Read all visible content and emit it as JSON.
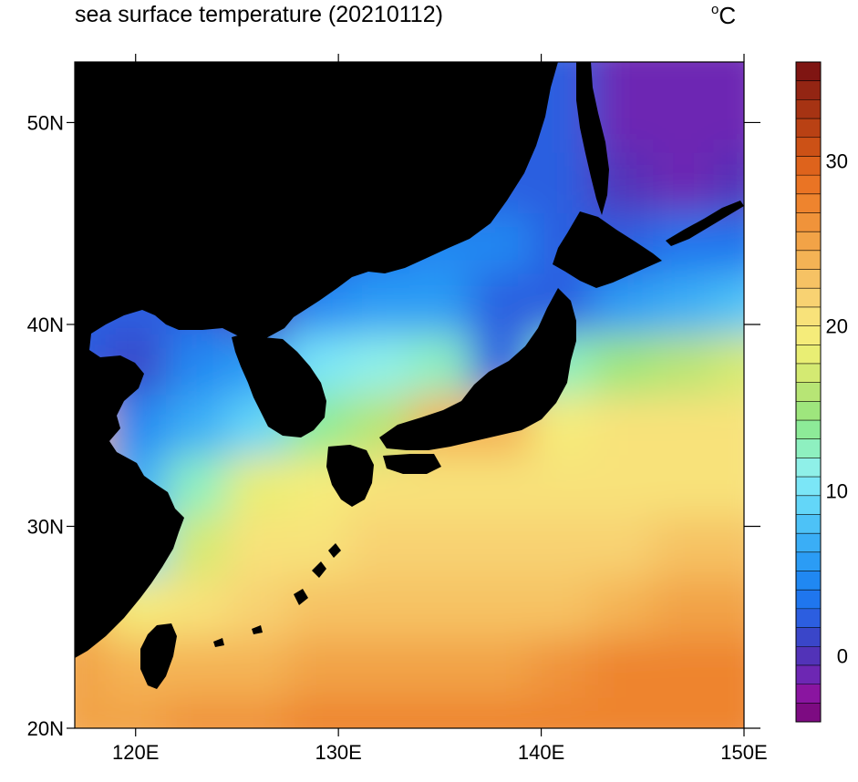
{
  "title": "sea surface temperature (20210112)",
  "units": {
    "degree": "o",
    "unit": "C"
  },
  "map": {
    "lon_range": [
      117,
      150
    ],
    "lat_range": [
      20,
      53
    ],
    "lon_ticks": [
      {
        "value": 120,
        "label": "120E"
      },
      {
        "value": 130,
        "label": "130E"
      },
      {
        "value": 140,
        "label": "140E"
      },
      {
        "value": 150,
        "label": "150E"
      }
    ],
    "lat_ticks": [
      {
        "value": 20,
        "label": "20N"
      },
      {
        "value": 30,
        "label": "30N"
      },
      {
        "value": 40,
        "label": "40N"
      },
      {
        "value": 50,
        "label": "50N"
      }
    ],
    "land_color": "#000000"
  },
  "colorbar": {
    "range": [
      -4,
      36
    ],
    "ticks": [
      {
        "value": 0,
        "label": "0"
      },
      {
        "value": 10,
        "label": "10"
      },
      {
        "value": 20,
        "label": "20"
      },
      {
        "value": 30,
        "label": "30"
      }
    ],
    "colors": [
      "#7d0b82",
      "#8a15a0",
      "#6d27b3",
      "#5233b8",
      "#3a46c9",
      "#2c5ee0",
      "#1f76ee",
      "#2088f2",
      "#2b9cf5",
      "#3aaef6",
      "#4dc2f7",
      "#63d6f8",
      "#7be6f7",
      "#8ff0e8",
      "#8ef0c0",
      "#8deb98",
      "#9ee67d",
      "#b7e575",
      "#d4ea72",
      "#e9ee74",
      "#f5ec7a",
      "#f8e27a",
      "#f8d272",
      "#f6c264",
      "#f4b355",
      "#f2a347",
      "#f0933a",
      "#ee842e",
      "#ea7424",
      "#de631c",
      "#cc5116",
      "#b94114",
      "#a63313",
      "#932513",
      "#7f1512"
    ]
  },
  "sst_field": {
    "lons": [
      117,
      120,
      123,
      126,
      129,
      132,
      135,
      138,
      141,
      144,
      147,
      150
    ],
    "lats": [
      53,
      50,
      47,
      44,
      41,
      38,
      35,
      32,
      29,
      26,
      23,
      20
    ],
    "values": [
      [
        null,
        null,
        null,
        null,
        null,
        null,
        null,
        null,
        null,
        -1,
        -1,
        -1
      ],
      [
        null,
        null,
        null,
        null,
        null,
        null,
        null,
        null,
        null,
        -1,
        -1,
        -1
      ],
      [
        null,
        null,
        null,
        null,
        null,
        null,
        1,
        2,
        null,
        -0.5,
        -1,
        0
      ],
      [
        null,
        null,
        null,
        null,
        null,
        3,
        4,
        5,
        null,
        2,
        3,
        3
      ],
      [
        null,
        null,
        null,
        0,
        4,
        6,
        6,
        null,
        null,
        6,
        7,
        8
      ],
      [
        null,
        1,
        4,
        6,
        10,
        11,
        12,
        null,
        13,
        15,
        16,
        17
      ],
      [
        null,
        5,
        7,
        9,
        14,
        16,
        null,
        null,
        19,
        20,
        21,
        21
      ],
      [
        null,
        7,
        13,
        18,
        19,
        20,
        20,
        20,
        21,
        21,
        21,
        21
      ],
      [
        null,
        9,
        17,
        20,
        21,
        22,
        22,
        22,
        22,
        22,
        23,
        23
      ],
      [
        null,
        19,
        21,
        22,
        23,
        23,
        23,
        23,
        23,
        24,
        25,
        25
      ],
      [
        25,
        null,
        24,
        24,
        25,
        25,
        25,
        25,
        26,
        27,
        27,
        27
      ],
      [
        25,
        25,
        26,
        26,
        27,
        27,
        27,
        27,
        27,
        27,
        27,
        27
      ]
    ]
  }
}
